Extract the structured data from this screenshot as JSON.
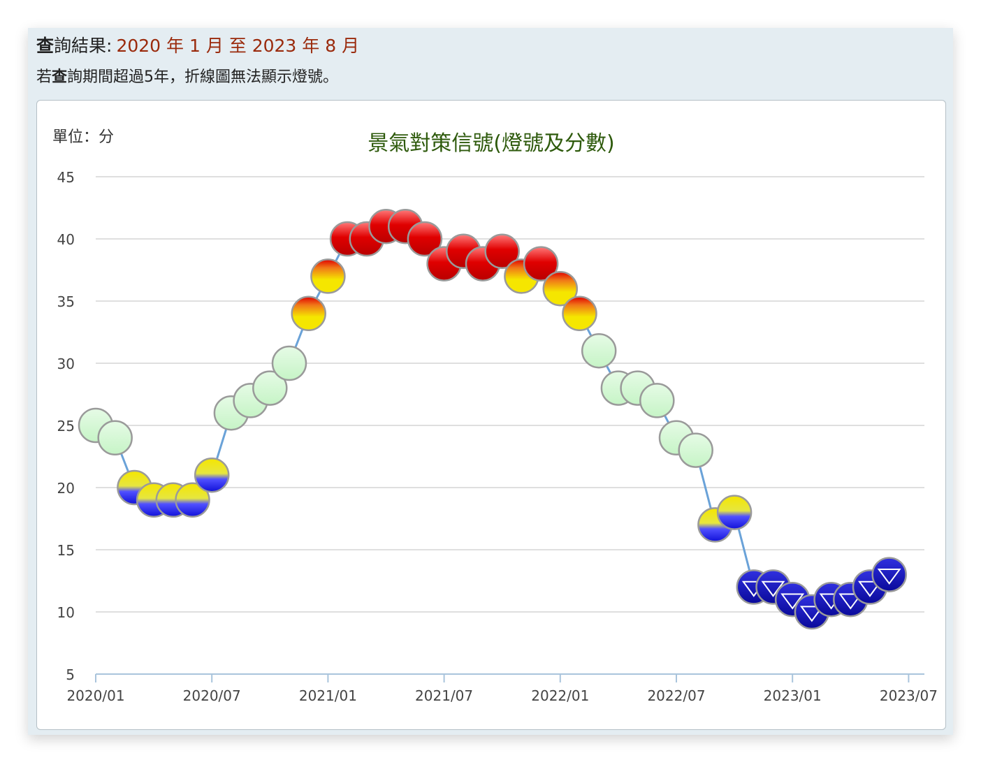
{
  "header": {
    "query_prefix_bold": "查",
    "query_prefix_rest": "詢結果:",
    "query_range": "2020 年 1 月 至 2023 年 8 月",
    "note_before": "若",
    "note_bold": "查",
    "note_after": "詢期間超過5年，折線圖無法顯示燈號。"
  },
  "chart_data": {
    "type": "line",
    "title": "景氣對策信號(燈號及分數)",
    "unit_label": "單位：分",
    "xlabel": "",
    "ylabel": "",
    "ylim": [
      5,
      45
    ],
    "yticks": [
      5,
      10,
      15,
      20,
      25,
      30,
      35,
      40,
      45
    ],
    "xtick_labels": [
      "2020/01",
      "2020/07",
      "2021/01",
      "2021/07",
      "2022/01",
      "2022/07",
      "2023/01",
      "2023/07"
    ],
    "grid": true,
    "x": [
      "2020/01",
      "2020/02",
      "2020/03",
      "2020/04",
      "2020/05",
      "2020/06",
      "2020/07",
      "2020/08",
      "2020/09",
      "2020/10",
      "2020/11",
      "2020/12",
      "2021/01",
      "2021/02",
      "2021/03",
      "2021/04",
      "2021/05",
      "2021/06",
      "2021/07",
      "2021/08",
      "2021/09",
      "2021/10",
      "2021/11",
      "2021/12",
      "2022/01",
      "2022/02",
      "2022/03",
      "2022/04",
      "2022/05",
      "2022/06",
      "2022/07",
      "2022/08",
      "2022/09",
      "2022/10",
      "2022/11",
      "2022/12",
      "2023/01",
      "2023/02",
      "2023/03",
      "2023/04",
      "2023/05",
      "2023/06"
    ],
    "values": [
      25,
      24,
      20,
      19,
      19,
      19,
      21,
      26,
      27,
      28,
      30,
      34,
      37,
      40,
      40,
      41,
      41,
      40,
      38,
      39,
      38,
      39,
      37,
      38,
      36,
      34,
      31,
      28,
      28,
      27,
      24,
      23,
      17,
      18,
      12,
      12,
      11,
      10,
      11,
      11,
      12,
      13
    ],
    "signals": [
      "green",
      "green",
      "yellow-blue",
      "yellow-blue",
      "yellow-blue",
      "yellow-blue",
      "yellow-blue",
      "green",
      "green",
      "green",
      "green",
      "yellow-red",
      "yellow-red",
      "red",
      "red",
      "red",
      "red",
      "red",
      "red",
      "red",
      "red",
      "red",
      "yellow-red",
      "red",
      "yellow-red",
      "yellow-red",
      "green",
      "green",
      "green",
      "green",
      "green",
      "green",
      "yellow-blue",
      "yellow-blue",
      "blue",
      "blue",
      "blue",
      "blue",
      "blue",
      "blue",
      "blue",
      "blue"
    ],
    "colors": {
      "line": "#6aa2d8",
      "grid": "#cccccc",
      "axis": "#a9c4dc",
      "red": "#e00000",
      "yellow": "#f5e600",
      "orange": "#f07818",
      "blue": "#1010d8",
      "dark_blue": "#0a0a9a",
      "green": "#c6f4c6"
    }
  }
}
